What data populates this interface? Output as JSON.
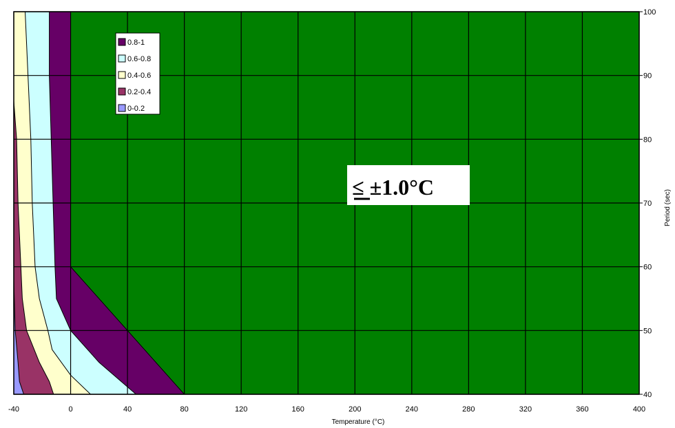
{
  "chart_data": {
    "type": "area",
    "title": "",
    "xlabel": "Temperature (°C)",
    "ylabel": "Period (sec)",
    "xlim": [
      -40,
      400
    ],
    "ylim": [
      40,
      100
    ],
    "x_ticks": [
      "-40",
      "0",
      "40",
      "80",
      "120",
      "160",
      "200",
      "240",
      "280",
      "320",
      "360",
      "400"
    ],
    "y_ticks": [
      "40",
      "50",
      "60",
      "70",
      "80",
      "90",
      "100"
    ],
    "grid": true,
    "background_region": {
      "label": "≤ ±1.0°C",
      "color": "#008000"
    },
    "annotation": {
      "label": "≤ ±1.0°C",
      "underlined_glyph": "≤",
      "rest": " ±1.0°C"
    },
    "legend_position": "top-left",
    "series": [
      {
        "name": "0.8-1",
        "color": "#660066",
        "boundary": [
          [
            0,
            100
          ],
          [
            0,
            60
          ],
          [
            80,
            40
          ]
        ]
      },
      {
        "name": "0.6-0.8",
        "color": "#ccffff",
        "boundary": [
          [
            -15,
            100
          ],
          [
            -15,
            90
          ],
          [
            -11,
            60
          ],
          [
            -10,
            55
          ],
          [
            0,
            50
          ],
          [
            20,
            45
          ],
          [
            46,
            40
          ]
        ]
      },
      {
        "name": "0.4-0.6",
        "color": "#ffffcc",
        "boundary": [
          [
            -32,
            100
          ],
          [
            -30,
            90
          ],
          [
            -28,
            80
          ],
          [
            -27,
            70
          ],
          [
            -25,
            60
          ],
          [
            -22,
            55
          ],
          [
            -16,
            50
          ],
          [
            -13,
            47
          ],
          [
            0,
            43
          ],
          [
            14,
            40
          ]
        ]
      },
      {
        "name": "0.2-0.4",
        "color": "#993366",
        "boundary": [
          [
            -40,
            86
          ],
          [
            -38,
            80
          ],
          [
            -37,
            70
          ],
          [
            -35,
            60
          ],
          [
            -34,
            55
          ],
          [
            -31,
            50
          ],
          [
            -22,
            45
          ],
          [
            -15,
            42
          ],
          [
            -12,
            40
          ]
        ]
      },
      {
        "name": "0-0.2",
        "color": "#9999ff",
        "boundary": [
          [
            -40,
            58
          ],
          [
            -39,
            50
          ],
          [
            -37,
            45
          ],
          [
            -36,
            42
          ],
          [
            -33,
            40
          ]
        ]
      }
    ]
  }
}
